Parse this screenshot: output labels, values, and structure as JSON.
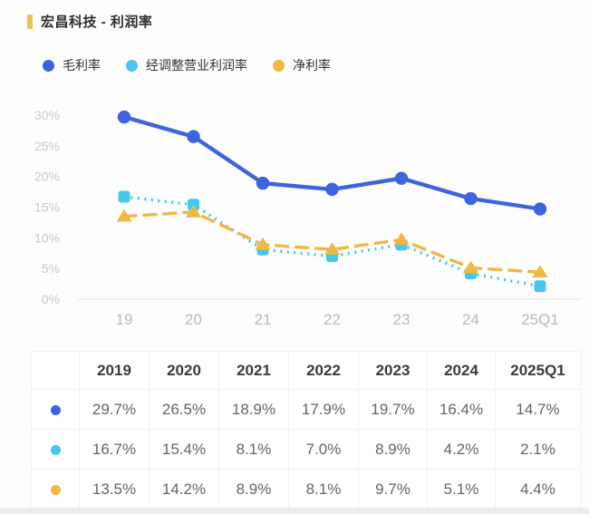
{
  "title": {
    "text": "宏昌科技 - 利润率"
  },
  "legend": [
    {
      "label": "毛利率",
      "color": "#3c64de",
      "marker": "circle"
    },
    {
      "label": "经调整营业利润率",
      "color": "#47c6ef",
      "marker": "square"
    },
    {
      "label": "净利率",
      "color": "#f0b840",
      "marker": "triangle"
    }
  ],
  "chart_data": {
    "type": "line",
    "x": [
      "19",
      "20",
      "21",
      "22",
      "23",
      "24",
      "25Q1"
    ],
    "series": [
      {
        "name": "毛利率",
        "color": "#3c64de",
        "line_style": "solid",
        "marker": "circle",
        "values": [
          29.7,
          26.5,
          18.9,
          17.9,
          19.7,
          16.4,
          14.7
        ]
      },
      {
        "name": "经调整营业利润率",
        "color": "#47c6ef",
        "line_style": "dotted",
        "marker": "square",
        "values": [
          16.7,
          15.4,
          8.1,
          7.0,
          8.9,
          4.2,
          2.1
        ]
      },
      {
        "name": "净利率",
        "color": "#f0b840",
        "line_style": "dashed",
        "marker": "triangle",
        "values": [
          13.5,
          14.2,
          8.9,
          8.1,
          9.7,
          5.1,
          4.4
        ]
      }
    ],
    "ylim": [
      0,
      30
    ],
    "y_ticks": [
      "0%",
      "5%",
      "10%",
      "15%",
      "20%",
      "25%",
      "30%"
    ],
    "y_tick_step": 5,
    "grid": false,
    "legend_position": "top",
    "title": "宏昌科技 - 利润率",
    "xlabel": "",
    "ylabel": ""
  },
  "table": {
    "headers": [
      "2019",
      "2020",
      "2021",
      "2022",
      "2023",
      "2024",
      "2025Q1"
    ],
    "rows": [
      {
        "series": "毛利率",
        "dot_color": "#3c64de",
        "values": [
          "29.7%",
          "26.5%",
          "18.9%",
          "17.9%",
          "19.7%",
          "16.4%",
          "14.7%"
        ]
      },
      {
        "series": "经调整营业利润率",
        "dot_color": "#47c6ef",
        "values": [
          "16.7%",
          "15.4%",
          "8.1%",
          "7.0%",
          "8.9%",
          "4.2%",
          "2.1%"
        ]
      },
      {
        "series": "净利率",
        "dot_color": "#f0b840",
        "values": [
          "13.5%",
          "14.2%",
          "8.9%",
          "8.1%",
          "9.7%",
          "5.1%",
          "4.4%"
        ]
      }
    ]
  },
  "colors": {
    "accent_bar": "#ecc254",
    "axis_line": "#e9e9e9",
    "y_tick_text": "#c8c8c8",
    "x_tick_text": "#b9b9b9",
    "panel_bg": "#fdfdfd",
    "table_border": "#f1f1f1",
    "header_text": "#3b3b3b",
    "cell_text": "#646464",
    "bottom_strip": "#ececec"
  }
}
